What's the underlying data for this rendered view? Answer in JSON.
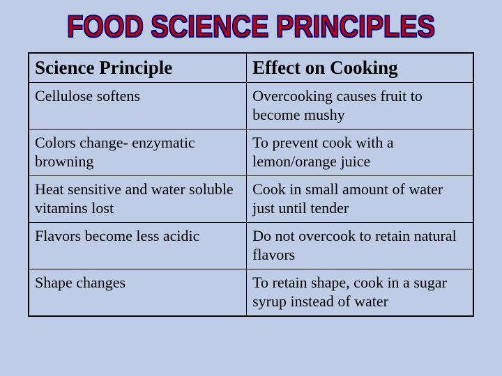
{
  "title": "FOOD SCIENCE PRINCIPLES",
  "title_styling": {
    "font_family": "Arial Black",
    "font_size_pt": 38,
    "fill_color": "#c00000",
    "stroke_color": "#000080",
    "letter_spacing": 0
  },
  "background_color": "#bfcce5",
  "table": {
    "columns": [
      {
        "label": "Science Principle",
        "width_pct": 49
      },
      {
        "label": "Effect on Cooking",
        "width_pct": 51
      }
    ],
    "rows": [
      [
        "Cellulose softens",
        "Overcooking causes fruit to become mushy"
      ],
      [
        "Colors change- enzymatic browning",
        "To prevent cook with a lemon/orange juice"
      ],
      [
        "Heat sensitive and water soluble vitamins lost",
        "Cook in small amount of water just until tender"
      ],
      [
        "Flavors become less acidic",
        "Do not overcook to retain natural flavors"
      ],
      [
        "Shape changes",
        "To retain shape, cook in a sugar syrup instead of water"
      ]
    ],
    "styling": {
      "border_color": "#000000",
      "border_width": 1.5,
      "header_font_size": 27,
      "header_font_weight": "bold",
      "cell_font_size": 22,
      "font_family": "Times New Roman",
      "cell_padding": "6px 8px"
    }
  }
}
